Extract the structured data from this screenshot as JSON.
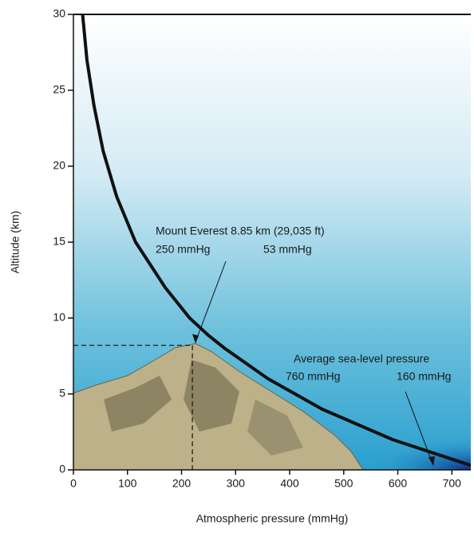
{
  "chart_data": {
    "type": "line",
    "x_label": "Atmospheric pressure (mmHg)",
    "y_label": "Altitude (km)",
    "x": [
      760,
      590,
      460,
      360,
      280,
      250,
      215,
      170,
      115,
      80,
      55,
      38,
      25,
      17,
      10
    ],
    "values": [
      0,
      2,
      4,
      6,
      8,
      8.85,
      10,
      12,
      15,
      18,
      21,
      24,
      27,
      30,
      31
    ],
    "color": "#111111",
    "xlim": [
      0,
      735
    ],
    "ylim": [
      0,
      30
    ],
    "xticks": [
      0,
      100,
      200,
      300,
      400,
      500,
      600,
      700
    ],
    "yticks": [
      0,
      5,
      10,
      15,
      20,
      25,
      30
    ],
    "marker": {
      "x": 220,
      "y": 8.2
    },
    "annotations": [
      {
        "text": "Mount Everest 8.85 km (29,035 ft)"
      },
      {
        "text": "250 mmHg"
      },
      {
        "text": "53 mmHg"
      },
      {
        "text": "Average sea-level pressure"
      },
      {
        "text": "760 mmHg"
      },
      {
        "text": "160 mmHg"
      }
    ]
  }
}
